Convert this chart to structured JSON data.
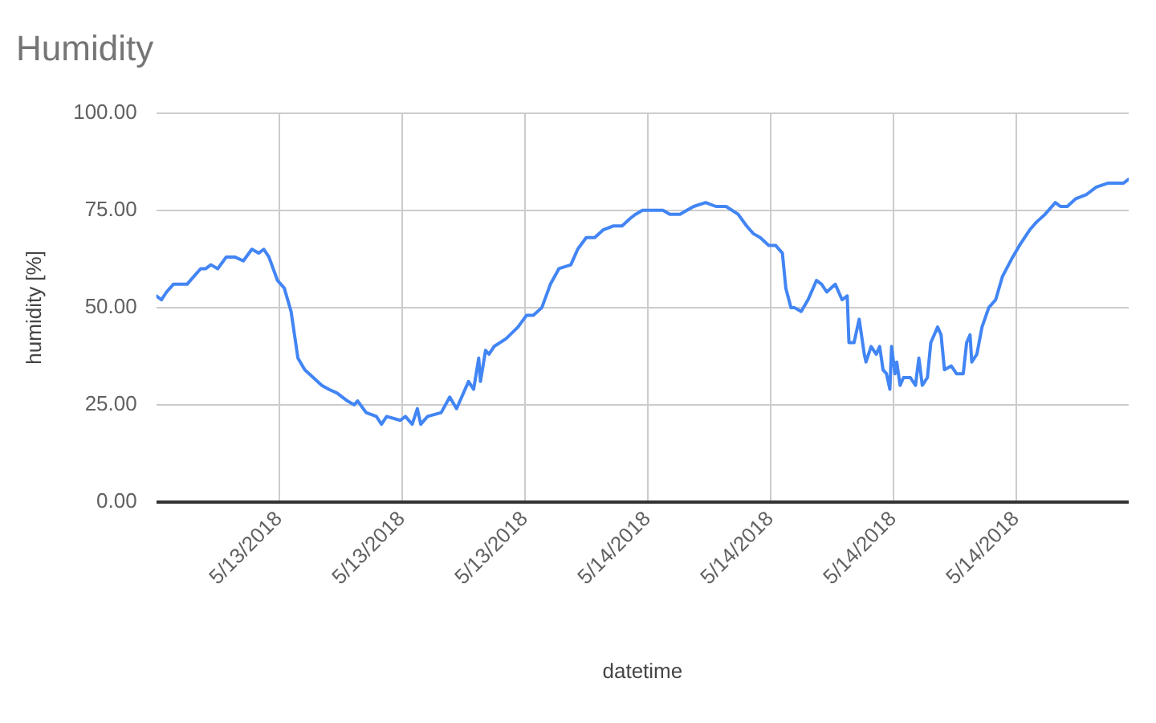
{
  "chart_data": {
    "type": "line",
    "title": "Humidity",
    "xlabel": "datetime",
    "ylabel": "humidity [%]",
    "x": [
      "2018-05-13T00:00",
      "2018-05-13T00:15",
      "2018-05-13T00:30",
      "2018-05-13T00:50",
      "2018-05-13T01:30",
      "2018-05-13T01:50",
      "2018-05-13T02:10",
      "2018-05-13T02:25",
      "2018-05-13T02:40",
      "2018-05-13T03:00",
      "2018-05-13T03:25",
      "2018-05-13T03:50",
      "2018-05-13T04:15",
      "2018-05-13T04:40",
      "2018-05-13T05:00",
      "2018-05-13T05:15",
      "2018-05-13T05:30",
      "2018-05-13T05:55",
      "2018-05-13T06:15",
      "2018-05-13T06:35",
      "2018-05-13T06:55",
      "2018-05-13T07:15",
      "2018-05-13T07:40",
      "2018-05-13T08:05",
      "2018-05-13T08:25",
      "2018-05-13T08:50",
      "2018-05-13T09:20",
      "2018-05-13T09:40",
      "2018-05-13T09:50",
      "2018-05-13T10:15",
      "2018-05-13T10:45",
      "2018-05-13T11:00",
      "2018-05-13T11:15",
      "2018-05-13T11:55",
      "2018-05-13T12:10",
      "2018-05-13T12:30",
      "2018-05-13T12:45",
      "2018-05-13T12:55",
      "2018-05-13T13:15",
      "2018-05-13T13:55",
      "2018-05-13T14:20",
      "2018-05-13T14:40",
      "2018-05-13T14:55",
      "2018-05-13T15:15",
      "2018-05-13T15:30",
      "2018-05-13T15:45",
      "2018-05-13T15:50",
      "2018-05-13T16:05",
      "2018-05-13T16:15",
      "2018-05-13T16:30",
      "2018-05-13T17:05",
      "2018-05-13T17:40",
      "2018-05-13T18:05",
      "2018-05-13T18:25",
      "2018-05-13T18:50",
      "2018-05-13T19:15",
      "2018-05-13T19:40",
      "2018-05-13T20:15",
      "2018-05-13T20:35",
      "2018-05-13T21:00",
      "2018-05-13T21:25",
      "2018-05-13T21:50",
      "2018-05-13T22:20",
      "2018-05-13T22:45",
      "2018-05-13T23:10",
      "2018-05-13T23:25",
      "2018-05-13T23:45",
      "2018-05-14T00:10",
      "2018-05-14T00:45",
      "2018-05-14T01:05",
      "2018-05-14T01:35",
      "2018-05-14T01:55",
      "2018-05-14T02:15",
      "2018-05-14T02:50",
      "2018-05-14T03:20",
      "2018-05-14T03:50",
      "2018-05-14T04:25",
      "2018-05-14T04:50",
      "2018-05-14T05:10",
      "2018-05-14T05:30",
      "2018-05-14T05:55",
      "2018-05-14T06:15",
      "2018-05-14T06:35",
      "2018-05-14T06:45",
      "2018-05-14T07:00",
      "2018-05-14T07:10",
      "2018-05-14T07:30",
      "2018-05-14T07:50",
      "2018-05-14T08:15",
      "2018-05-14T08:30",
      "2018-05-14T08:45",
      "2018-05-14T09:10",
      "2018-05-14T09:30",
      "2018-05-14T09:45",
      "2018-05-14T09:50",
      "2018-05-14T10:05",
      "2018-05-14T10:20",
      "2018-05-14T10:35",
      "2018-05-14T10:40",
      "2018-05-14T10:55",
      "2018-05-14T11:10",
      "2018-05-14T11:20",
      "2018-05-14T11:30",
      "2018-05-14T11:40",
      "2018-05-14T11:50",
      "2018-05-14T11:55",
      "2018-05-14T12:05",
      "2018-05-14T12:10",
      "2018-05-14T12:20",
      "2018-05-14T12:30",
      "2018-05-14T12:50",
      "2018-05-14T13:05",
      "2018-05-14T13:15",
      "2018-05-14T13:25",
      "2018-05-14T13:40",
      "2018-05-14T13:50",
      "2018-05-14T14:10",
      "2018-05-14T14:20",
      "2018-05-14T14:30",
      "2018-05-14T14:50",
      "2018-05-14T15:05",
      "2018-05-14T15:25",
      "2018-05-14T15:35",
      "2018-05-14T15:45",
      "2018-05-14T15:50",
      "2018-05-14T16:05",
      "2018-05-14T16:20",
      "2018-05-14T16:40",
      "2018-05-14T17:00",
      "2018-05-14T17:20",
      "2018-05-14T17:50",
      "2018-05-14T18:10",
      "2018-05-14T18:40",
      "2018-05-14T19:00",
      "2018-05-14T19:25",
      "2018-05-14T19:55",
      "2018-05-14T20:10",
      "2018-05-14T20:30",
      "2018-05-14T20:55",
      "2018-05-14T21:25",
      "2018-05-14T21:55",
      "2018-05-14T22:30",
      "2018-05-14T22:55",
      "2018-05-14T23:15",
      "2018-05-14T23:30"
    ],
    "series": [
      {
        "color": "#4285f4",
        "values": [
          53,
          52,
          54,
          56,
          56,
          58,
          60,
          60,
          61,
          60,
          63,
          63,
          62,
          65,
          64,
          65,
          63,
          57,
          55,
          49,
          37,
          34,
          32,
          30,
          29,
          28,
          26,
          25,
          26,
          23,
          22,
          20,
          22,
          21,
          22,
          20,
          24,
          20,
          22,
          23,
          27,
          24,
          27,
          31,
          29,
          37,
          31,
          39,
          38,
          40,
          42,
          45,
          48,
          48,
          50,
          56,
          60,
          61,
          65,
          68,
          68,
          70,
          71,
          71,
          73,
          74,
          75,
          75,
          75,
          74,
          74,
          75,
          76,
          77,
          76,
          76,
          74,
          71,
          69,
          68,
          66,
          66,
          64,
          55,
          50,
          50,
          49,
          52,
          57,
          56,
          54,
          56,
          52,
          53,
          41,
          41,
          47,
          38,
          36,
          40,
          38,
          40,
          34,
          33,
          29,
          40,
          33,
          36,
          30,
          32,
          32,
          30,
          37,
          30,
          32,
          41,
          45,
          43,
          34,
          35,
          33,
          33,
          41,
          43,
          36,
          38,
          45,
          50,
          52,
          58,
          63,
          66,
          70,
          72,
          74,
          77,
          76,
          76,
          78,
          79,
          81,
          82,
          82,
          82,
          83
        ]
      }
    ],
    "xlim": [
      "2018-05-13T00:00",
      "2018-05-14T23:30"
    ],
    "xticks": [
      {
        "value": "2018-05-13T06:00",
        "label": "5/13/2018"
      },
      {
        "value": "2018-05-13T12:00",
        "label": "5/13/2018"
      },
      {
        "value": "2018-05-13T18:00",
        "label": "5/13/2018"
      },
      {
        "value": "2018-05-14T00:00",
        "label": "5/14/2018"
      },
      {
        "value": "2018-05-14T06:00",
        "label": "5/14/2018"
      },
      {
        "value": "2018-05-14T12:00",
        "label": "5/14/2018"
      },
      {
        "value": "2018-05-14T18:00",
        "label": "5/14/2018"
      }
    ],
    "ylim": [
      0,
      100
    ],
    "yticks": [
      {
        "value": 0,
        "label": "0.00"
      },
      {
        "value": 25,
        "label": "25.00"
      },
      {
        "value": 50,
        "label": "50.00"
      },
      {
        "value": 75,
        "label": "75.00"
      },
      {
        "value": 100,
        "label": "100.00"
      }
    ],
    "grid": true,
    "legend": false,
    "marker": "none",
    "line_style": "solid"
  }
}
